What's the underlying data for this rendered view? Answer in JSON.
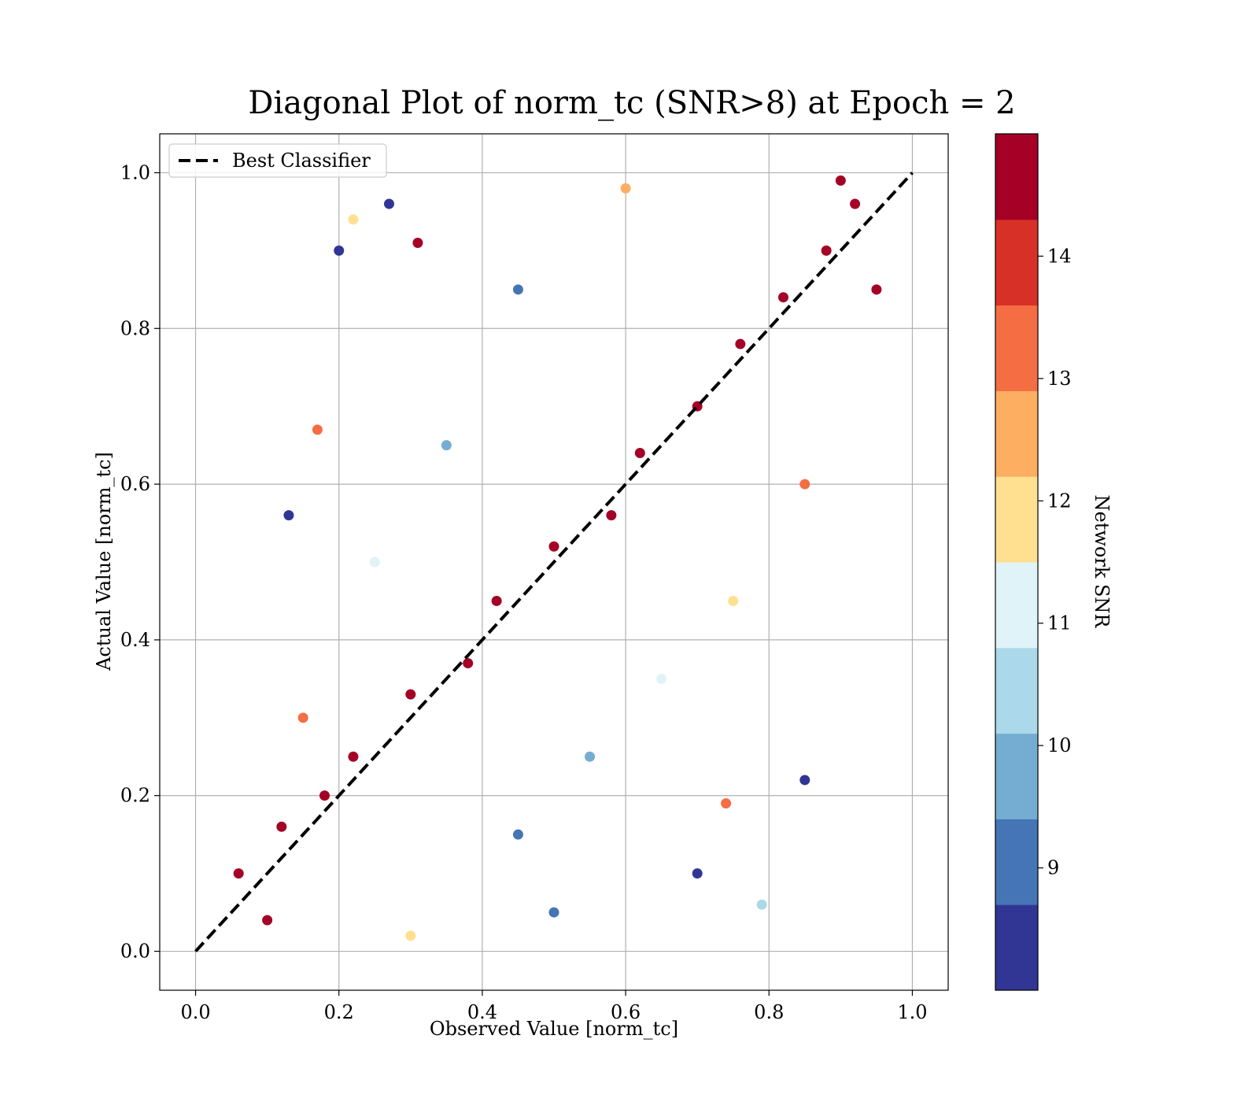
{
  "chart_data": {
    "type": "scatter",
    "title": "Diagonal Plot of norm_tc (SNR>8) at Epoch = 2",
    "xlabel": "Observed Value [norm_tc]",
    "ylabel": "Actual Value [norm_tc]",
    "xlim": [
      -0.05,
      1.05
    ],
    "ylim": [
      -0.05,
      1.05
    ],
    "xticks": [
      0.0,
      0.2,
      0.4,
      0.6,
      0.8,
      1.0
    ],
    "yticks": [
      0.0,
      0.2,
      0.4,
      0.6,
      0.8,
      1.0
    ],
    "xtick_labels": [
      "0.0",
      "0.2",
      "0.4",
      "0.6",
      "0.8",
      "1.0"
    ],
    "ytick_labels": [
      "0.0",
      "0.2",
      "0.4",
      "0.6",
      "0.8",
      "1.0"
    ],
    "grid": true,
    "legend": {
      "position": "top-left",
      "entries": [
        {
          "label": "Best Classifier",
          "style": "dashed",
          "color": "#000000"
        }
      ]
    },
    "reference_line": {
      "name": "Best Classifier",
      "x": [
        0.0,
        1.0
      ],
      "y": [
        0.0,
        1.0
      ]
    },
    "colorbar": {
      "label": "Network SNR",
      "range": [
        8.0,
        15.0
      ],
      "tick_values": [
        9,
        10,
        11,
        12,
        13,
        14
      ],
      "tick_labels": [
        "9",
        "10",
        "11",
        "12",
        "13",
        "14"
      ],
      "bins": [
        {
          "from": 8.0,
          "to": 8.7,
          "color": "#313695"
        },
        {
          "from": 8.7,
          "to": 9.4,
          "color": "#4575b4"
        },
        {
          "from": 9.4,
          "to": 10.1,
          "color": "#74add1"
        },
        {
          "from": 10.1,
          "to": 10.8,
          "color": "#abd9e9"
        },
        {
          "from": 10.8,
          "to": 11.5,
          "color": "#e0f3f8"
        },
        {
          "from": 11.5,
          "to": 12.2,
          "color": "#fee090"
        },
        {
          "from": 12.2,
          "to": 12.9,
          "color": "#fdae61"
        },
        {
          "from": 12.9,
          "to": 13.6,
          "color": "#f46d43"
        },
        {
          "from": 13.6,
          "to": 14.3,
          "color": "#d73027"
        },
        {
          "from": 14.3,
          "to": 15.0,
          "color": "#a50026"
        }
      ]
    },
    "series": [
      {
        "points": [
          [
            0.1,
            0.04,
            15
          ],
          [
            0.06,
            0.1,
            15
          ],
          [
            0.12,
            0.16,
            15
          ],
          [
            0.18,
            0.2,
            15
          ],
          [
            0.22,
            0.25,
            15
          ],
          [
            0.3,
            0.33,
            15
          ],
          [
            0.38,
            0.37,
            15
          ],
          [
            0.42,
            0.45,
            15
          ],
          [
            0.5,
            0.52,
            15
          ],
          [
            0.58,
            0.56,
            15
          ],
          [
            0.62,
            0.64,
            15
          ],
          [
            0.7,
            0.7,
            15
          ],
          [
            0.76,
            0.78,
            15
          ],
          [
            0.82,
            0.84,
            15
          ],
          [
            0.88,
            0.9,
            15
          ],
          [
            0.92,
            0.96,
            15
          ],
          [
            0.9,
            0.99,
            15
          ],
          [
            0.95,
            0.85,
            15
          ],
          [
            0.6,
            0.98,
            12.5
          ],
          [
            0.45,
            0.85,
            9
          ],
          [
            0.35,
            0.65,
            10
          ],
          [
            0.25,
            0.5,
            11
          ],
          [
            0.15,
            0.3,
            13
          ],
          [
            0.45,
            0.15,
            9
          ],
          [
            0.55,
            0.25,
            10
          ],
          [
            0.65,
            0.35,
            11
          ],
          [
            0.75,
            0.45,
            12
          ],
          [
            0.85,
            0.6,
            13
          ],
          [
            0.3,
            0.02,
            12
          ],
          [
            0.5,
            0.05,
            9
          ],
          [
            0.7,
            0.1,
            8.5
          ],
          [
            0.85,
            0.22,
            8.5
          ],
          [
            0.2,
            0.9,
            8.5
          ],
          [
            0.27,
            0.96,
            8.5
          ],
          [
            0.13,
            0.56,
            8.5
          ],
          [
            0.31,
            0.91,
            14.5
          ],
          [
            0.22,
            0.94,
            11.5
          ],
          [
            0.17,
            0.67,
            13.5
          ],
          [
            0.74,
            0.19,
            13.5
          ],
          [
            0.79,
            0.06,
            10.5
          ]
        ]
      }
    ]
  }
}
